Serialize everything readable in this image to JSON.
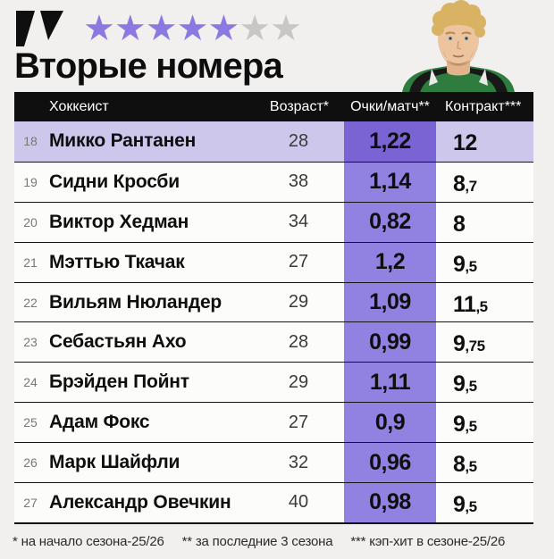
{
  "header": {
    "title": "Вторые номера",
    "rating": {
      "filled": 5,
      "total": 7,
      "filled_color": "#8a79e1",
      "empty_color": "#c8c7c5"
    }
  },
  "table": {
    "columns": [
      "Хоккеист",
      "Возраст*",
      "Очки/матч**",
      "Контракт***"
    ],
    "accent_column_color": "#9181e0",
    "highlight_cell_color": "#7a63d3",
    "highlight_row_color": "#cdc7eb",
    "rows": [
      {
        "rank": "18",
        "name": "Микко Рантанен",
        "age": "28",
        "points": "1,22",
        "contract_main": "12",
        "contract_dec": "",
        "highlight": true
      },
      {
        "rank": "19",
        "name": "Сидни Кросби",
        "age": "38",
        "points": "1,14",
        "contract_main": "8",
        "contract_dec": ",7",
        "highlight": false
      },
      {
        "rank": "20",
        "name": "Виктор Хедман",
        "age": "34",
        "points": "0,82",
        "contract_main": "8",
        "contract_dec": "",
        "highlight": false
      },
      {
        "rank": "21",
        "name": "Мэттью Ткачак",
        "age": "27",
        "points": "1,2",
        "contract_main": "9",
        "contract_dec": ",5",
        "highlight": false
      },
      {
        "rank": "22",
        "name": "Вильям Нюландер",
        "age": "29",
        "points": "1,09",
        "contract_main": "11",
        "contract_dec": ",5",
        "highlight": false
      },
      {
        "rank": "23",
        "name": "Себастьян Ахо",
        "age": "28",
        "points": "0,99",
        "contract_main": "9",
        "contract_dec": ",75",
        "highlight": false
      },
      {
        "rank": "24",
        "name": "Брэйден Пойнт",
        "age": "29",
        "points": "1,11",
        "contract_main": "9",
        "contract_dec": ",5",
        "highlight": false
      },
      {
        "rank": "25",
        "name": "Адам Фокс",
        "age": "27",
        "points": "0,9",
        "contract_main": "9",
        "contract_dec": ",5",
        "highlight": false
      },
      {
        "rank": "26",
        "name": "Марк Шайфли",
        "age": "32",
        "points": "0,96",
        "contract_main": "8",
        "contract_dec": ",5",
        "highlight": false
      },
      {
        "rank": "27",
        "name": "Александр Овечкин",
        "age": "40",
        "points": "0,98",
        "contract_main": "9",
        "contract_dec": ",5",
        "highlight": false
      }
    ]
  },
  "footnotes": [
    "* на начало сезона-25/26",
    "** за последние 3 сезона",
    "*** кэп-хит в сезоне-25/26"
  ]
}
